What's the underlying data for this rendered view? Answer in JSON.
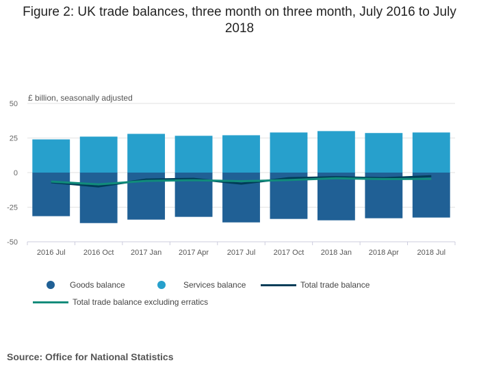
{
  "chart_data": {
    "type": "bar",
    "title": "Figure 2: UK trade balances, three month on three month, July 2016 to July 2018",
    "ylabel": "£ billion, seasonally adjusted",
    "ylim": [
      -50,
      50
    ],
    "yticks": [
      50,
      25,
      0,
      -25,
      -50
    ],
    "categories": [
      "2016 Jul",
      "2016 Oct",
      "2017 Jan",
      "2017 Apr",
      "2017 Jul",
      "2017 Oct",
      "2018 Jan",
      "2018 Apr",
      "2018 Jul"
    ],
    "series": [
      {
        "name": "Goods balance",
        "type": "bar",
        "color": "#206095",
        "values": [
          -31.5,
          -36.5,
          -34,
          -32,
          -36,
          -33.5,
          -34.5,
          -33,
          -32.5
        ]
      },
      {
        "name": "Services balance",
        "type": "bar",
        "color": "#27a0cc",
        "values": [
          24,
          26,
          28,
          26.6,
          27,
          29,
          30,
          28.6,
          29
        ]
      },
      {
        "name": "Total trade balance",
        "type": "line",
        "color": "#003c57",
        "values": [
          -7,
          -10,
          -5,
          -4.5,
          -8,
          -4,
          -3.3,
          -4,
          -2.6
        ]
      },
      {
        "name": "Total trade balance excluding erratics",
        "type": "line",
        "color": "#118c7b",
        "values": [
          -6.5,
          -8.5,
          -6,
          -5.5,
          -6.2,
          -5.4,
          -4.1,
          -4.7,
          -4.5
        ]
      }
    ],
    "grid": true,
    "legend": "bottom"
  },
  "source": "Source: Office for National Statistics"
}
